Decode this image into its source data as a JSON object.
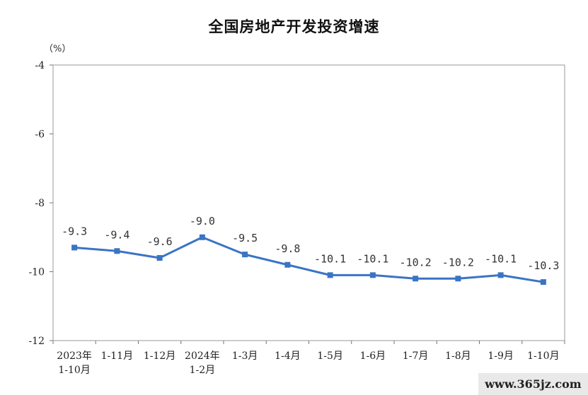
{
  "chart_data": {
    "type": "line",
    "title": "全国房地产开发投资增速",
    "ylabel": "（%）",
    "xlabel": "",
    "ylim": [
      -12,
      -4
    ],
    "yticks": [
      -4,
      -6,
      -8,
      -10,
      -12
    ],
    "grid": false,
    "categories": [
      [
        "2023年",
        "1-10月"
      ],
      [
        "1-11月"
      ],
      [
        "1-12月"
      ],
      [
        "2024年",
        "1-2月"
      ],
      [
        "1-3月"
      ],
      [
        "1-4月"
      ],
      [
        "1-5月"
      ],
      [
        "1-6月"
      ],
      [
        "1-7月"
      ],
      [
        "1-8月"
      ],
      [
        "1-9月"
      ],
      [
        "1-10月"
      ]
    ],
    "series": [
      {
        "values": [
          -9.3,
          -9.4,
          -9.6,
          -9.0,
          -9.5,
          -9.8,
          -10.1,
          -10.1,
          -10.2,
          -10.2,
          -10.1,
          -10.3
        ],
        "labels": [
          "-9.3",
          "-9.4",
          "-9.6",
          "-9.0",
          "-9.5",
          "-9.8",
          "-10.1",
          "-10.1",
          "-10.2",
          "-10.2",
          "-10.1",
          "-10.3"
        ],
        "color": "#3a74c4"
      }
    ]
  },
  "watermark": "www.365jz.com"
}
